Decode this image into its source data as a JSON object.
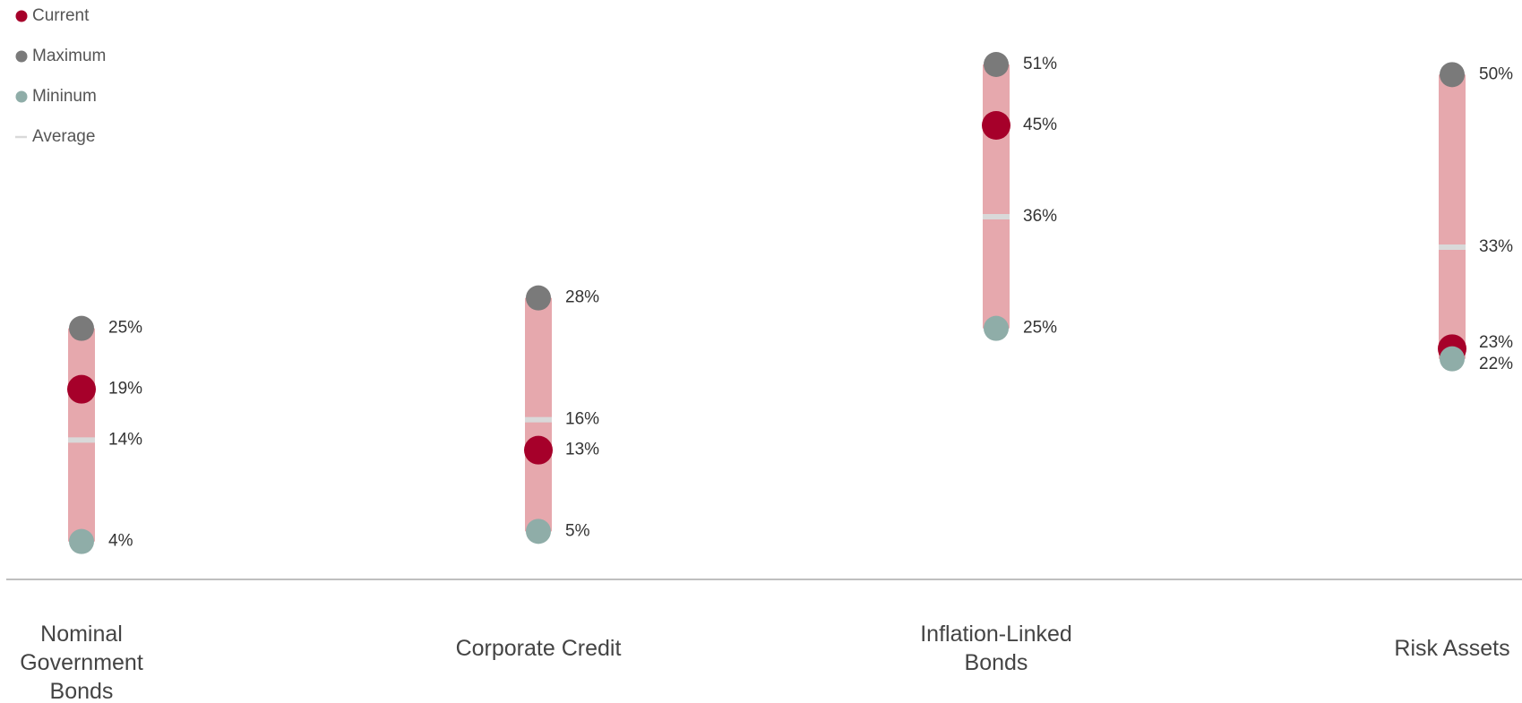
{
  "chart_data": {
    "type": "dot_range",
    "categories": [
      "Nominal Government Bonds",
      "Corporate Credit",
      "Inflation-Linked Bonds",
      "Risk Assets"
    ],
    "range_color": "#e6a8ad",
    "series": [
      {
        "name": "Current",
        "color": "#a6002a",
        "marker": "dot",
        "values": [
          19,
          13,
          45,
          23
        ],
        "value_labels": [
          "19%",
          "13%",
          "45%",
          "23%"
        ]
      },
      {
        "name": "Maximum",
        "color": "#7a7a7a",
        "marker": "dot",
        "values": [
          25,
          28,
          51,
          50
        ],
        "value_labels": [
          "25%",
          "28%",
          "51%",
          "50%"
        ]
      },
      {
        "name": "Mininum",
        "color": "#8fada8",
        "marker": "dot",
        "values": [
          4,
          5,
          25,
          22
        ],
        "value_labels": [
          "4%",
          "5%",
          "25%",
          "22%"
        ]
      },
      {
        "name": "Average",
        "color": "#d9d9d9",
        "marker": "dash",
        "values": [
          14,
          16,
          36,
          33
        ],
        "value_labels": [
          "14%",
          "16%",
          "36%",
          "33%"
        ]
      }
    ]
  }
}
